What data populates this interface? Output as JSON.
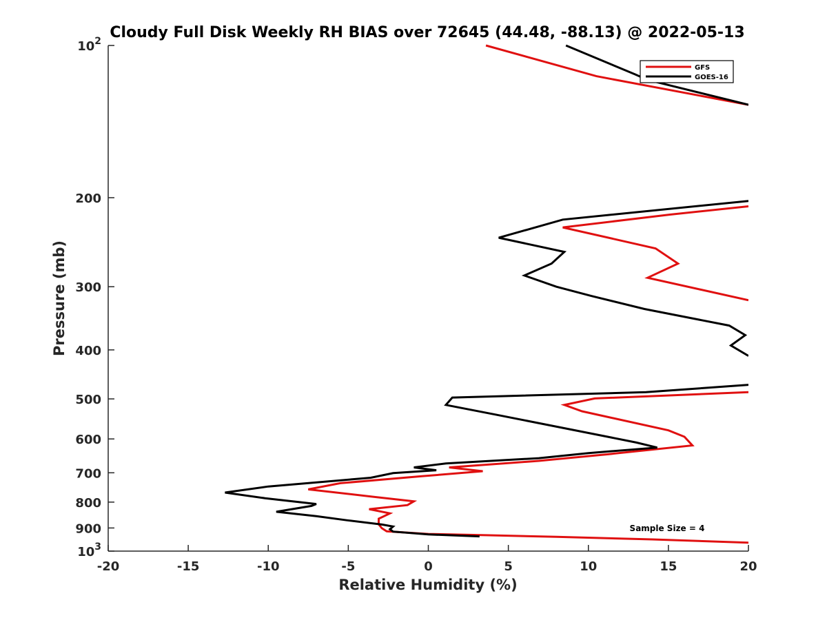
{
  "chart_data": {
    "type": "line",
    "title": "Cloudy Full Disk Weekly RH BIAS over 72645 (44.48, -88.13) @ 2022-05-13",
    "xlabel": "Relative Humidity (%)",
    "ylabel": "Pressure (mb)",
    "xlim": [
      -20,
      20
    ],
    "ylim": [
      100,
      1000
    ],
    "y_scale": "log",
    "y_reversed": true,
    "grid": false,
    "legend_position": "top-right",
    "xticks": [
      "-20",
      "-15",
      "-10",
      "-5",
      "0",
      "5",
      "10",
      "15",
      "20"
    ],
    "xtick_values": [
      -20,
      -15,
      -10,
      -5,
      0,
      5,
      10,
      15,
      20
    ],
    "yticks": [
      {
        "value": 100,
        "base": "10",
        "exp": "2"
      },
      {
        "value": 200,
        "base": "200",
        "exp": ""
      },
      {
        "value": 300,
        "base": "300",
        "exp": ""
      },
      {
        "value": 400,
        "base": "400",
        "exp": ""
      },
      {
        "value": 500,
        "base": "500",
        "exp": ""
      },
      {
        "value": 600,
        "base": "600",
        "exp": ""
      },
      {
        "value": 700,
        "base": "700",
        "exp": ""
      },
      {
        "value": 800,
        "base": "800",
        "exp": ""
      },
      {
        "value": 900,
        "base": "900",
        "exp": ""
      },
      {
        "value": 1000,
        "base": "10",
        "exp": "3"
      }
    ],
    "series": [
      {
        "name": "GFS",
        "color": "#e01010",
        "segments": [
          [
            [
              3.6,
              100
            ],
            [
              10.5,
              115
            ],
            [
              20,
              131
            ]
          ],
          [
            [
              20,
              208
            ],
            [
              15.1,
              216
            ],
            [
              8.4,
              229
            ],
            [
              14.2,
              252
            ],
            [
              15.6,
              270
            ],
            [
              13.7,
              288
            ],
            [
              20,
              319
            ]
          ],
          [
            [
              20,
              485
            ],
            [
              10.4,
              499
            ],
            [
              8.5,
              514
            ],
            [
              9.6,
              529
            ],
            [
              15,
              577
            ],
            [
              16.0,
              594
            ],
            [
              16.5,
              618
            ],
            [
              11.3,
              643
            ],
            [
              6.9,
              663
            ],
            [
              1.3,
              683
            ],
            [
              3.4,
              695
            ],
            [
              -0.4,
              711
            ],
            [
              -5.5,
              734
            ],
            [
              -7.5,
              755
            ],
            [
              -3.4,
              781
            ],
            [
              -0.9,
              797
            ],
            [
              -1.3,
              811
            ],
            [
              -3.7,
              826
            ],
            [
              -2.4,
              842
            ],
            [
              -3.1,
              863
            ],
            [
              -3.1,
              885
            ],
            [
              -2.9,
              901
            ],
            [
              -2.6,
              914
            ],
            [
              0,
              925
            ],
            [
              3.6,
              930
            ],
            [
              8,
              937
            ],
            [
              14,
              948
            ],
            [
              20,
              962
            ]
          ]
        ]
      },
      {
        "name": "GOES-16",
        "color": "#000000",
        "segments": [
          [
            [
              8.6,
              100
            ],
            [
              12.9,
              114
            ],
            [
              13.7,
              117
            ],
            [
              20,
              131
            ]
          ],
          [
            [
              20,
              203
            ],
            [
              8.4,
              221
            ],
            [
              4.4,
              240
            ],
            [
              8.5,
              256
            ],
            [
              7.7,
              270
            ],
            [
              6,
              285
            ],
            [
              8,
              300
            ],
            [
              10.2,
              313
            ],
            [
              13.5,
              332
            ],
            [
              18.8,
              358
            ],
            [
              19.8,
              374
            ],
            [
              18.9,
              392
            ],
            [
              20,
              411
            ]
          ],
          [
            [
              20,
              469
            ],
            [
              13.6,
              485
            ],
            [
              1.5,
              497
            ],
            [
              1.1,
              514
            ],
            [
              4.2,
              537
            ],
            [
              11.2,
              594
            ],
            [
              13,
              610
            ],
            [
              14.3,
              624
            ],
            [
              10,
              640
            ],
            [
              6.9,
              655
            ],
            [
              1.1,
              671
            ],
            [
              -0.9,
              683
            ],
            [
              0.5,
              692
            ],
            [
              -2.2,
              701
            ],
            [
              -3.6,
              716
            ],
            [
              -10,
              745
            ],
            [
              -12.7,
              766
            ],
            [
              -10.2,
              786
            ],
            [
              -7,
              807
            ],
            [
              -7.3,
              814
            ],
            [
              -9.5,
              836
            ],
            [
              -7,
              853
            ],
            [
              -5.1,
              869
            ],
            [
              -2.9,
              886
            ],
            [
              -2.2,
              894
            ],
            [
              -2.4,
              905
            ],
            [
              -2.2,
              915
            ],
            [
              0,
              927
            ],
            [
              3.2,
              935
            ]
          ]
        ]
      }
    ],
    "annotations": [
      "Sample Size = 4"
    ]
  }
}
